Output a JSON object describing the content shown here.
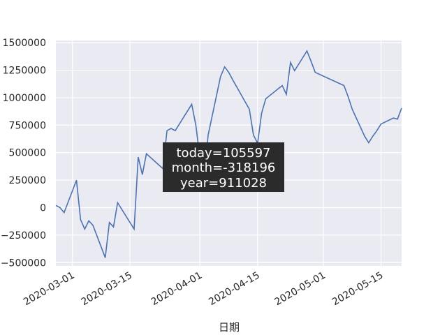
{
  "chart_data": {
    "type": "line",
    "title": "",
    "xlabel": "日期",
    "ylabel": "",
    "x_type": "date",
    "xlim": [
      "2020-02-26",
      "2020-05-20"
    ],
    "ylim": [
      -530000,
      1520000
    ],
    "grid": true,
    "line_color": "#4c72b0",
    "background": "#eaeaf2",
    "x_ticks": [
      "2020-03-01",
      "2020-03-15",
      "2020-04-01",
      "2020-04-15",
      "2020-05-01",
      "2020-05-15"
    ],
    "y_ticks": [
      {
        "value": -500000,
        "label": "−500000"
      },
      {
        "value": -250000,
        "label": "−250000"
      },
      {
        "value": 0,
        "label": "0"
      },
      {
        "value": 250000,
        "label": "250000"
      },
      {
        "value": 500000,
        "label": "500000"
      },
      {
        "value": 750000,
        "label": "750000"
      },
      {
        "value": 1000000,
        "label": "1000000"
      },
      {
        "value": 1250000,
        "label": "1250000"
      },
      {
        "value": 1500000,
        "label": "1500000"
      }
    ],
    "series": [
      {
        "x": [
          "2020-02-26",
          "2020-02-27",
          "2020-02-28",
          "2020-03-02",
          "2020-03-03",
          "2020-03-04",
          "2020-03-05",
          "2020-03-06",
          "2020-03-09",
          "2020-03-10",
          "2020-03-11",
          "2020-03-12",
          "2020-03-16",
          "2020-03-17",
          "2020-03-18",
          "2020-03-19",
          "2020-03-23",
          "2020-03-24",
          "2020-03-25",
          "2020-03-26",
          "2020-03-30",
          "2020-03-31",
          "2020-04-01",
          "2020-04-02",
          "2020-04-03",
          "2020-04-06",
          "2020-04-07",
          "2020-04-08",
          "2020-04-09",
          "2020-04-13",
          "2020-04-14",
          "2020-04-15",
          "2020-04-16",
          "2020-04-17",
          "2020-04-20",
          "2020-04-21",
          "2020-04-22",
          "2020-04-23",
          "2020-04-24",
          "2020-04-27",
          "2020-04-28",
          "2020-04-29",
          "2020-05-06",
          "2020-05-07",
          "2020-05-08",
          "2020-05-11",
          "2020-05-12",
          "2020-05-13",
          "2020-05-14",
          "2020-05-15",
          "2020-05-18",
          "2020-05-19",
          "2020-05-20"
        ],
        "values": [
          20000,
          0,
          -45000,
          250000,
          -110000,
          -195000,
          -120000,
          -160000,
          -455000,
          -135000,
          -175000,
          45000,
          -195000,
          460000,
          300000,
          490000,
          355000,
          700000,
          720000,
          700000,
          940000,
          750000,
          450000,
          250000,
          660000,
          1190000,
          1280000,
          1230000,
          1160000,
          895000,
          660000,
          585000,
          860000,
          990000,
          1080000,
          1110000,
          1030000,
          1320000,
          1245000,
          1425000,
          1330000,
          1230000,
          1110000,
          1010000,
          895000,
          650000,
          590000,
          650000,
          700000,
          760000,
          815000,
          805000,
          905000
        ]
      }
    ],
    "tooltip": {
      "lines": [
        "today=105597",
        "month=-318196",
        "year=911028"
      ]
    }
  }
}
